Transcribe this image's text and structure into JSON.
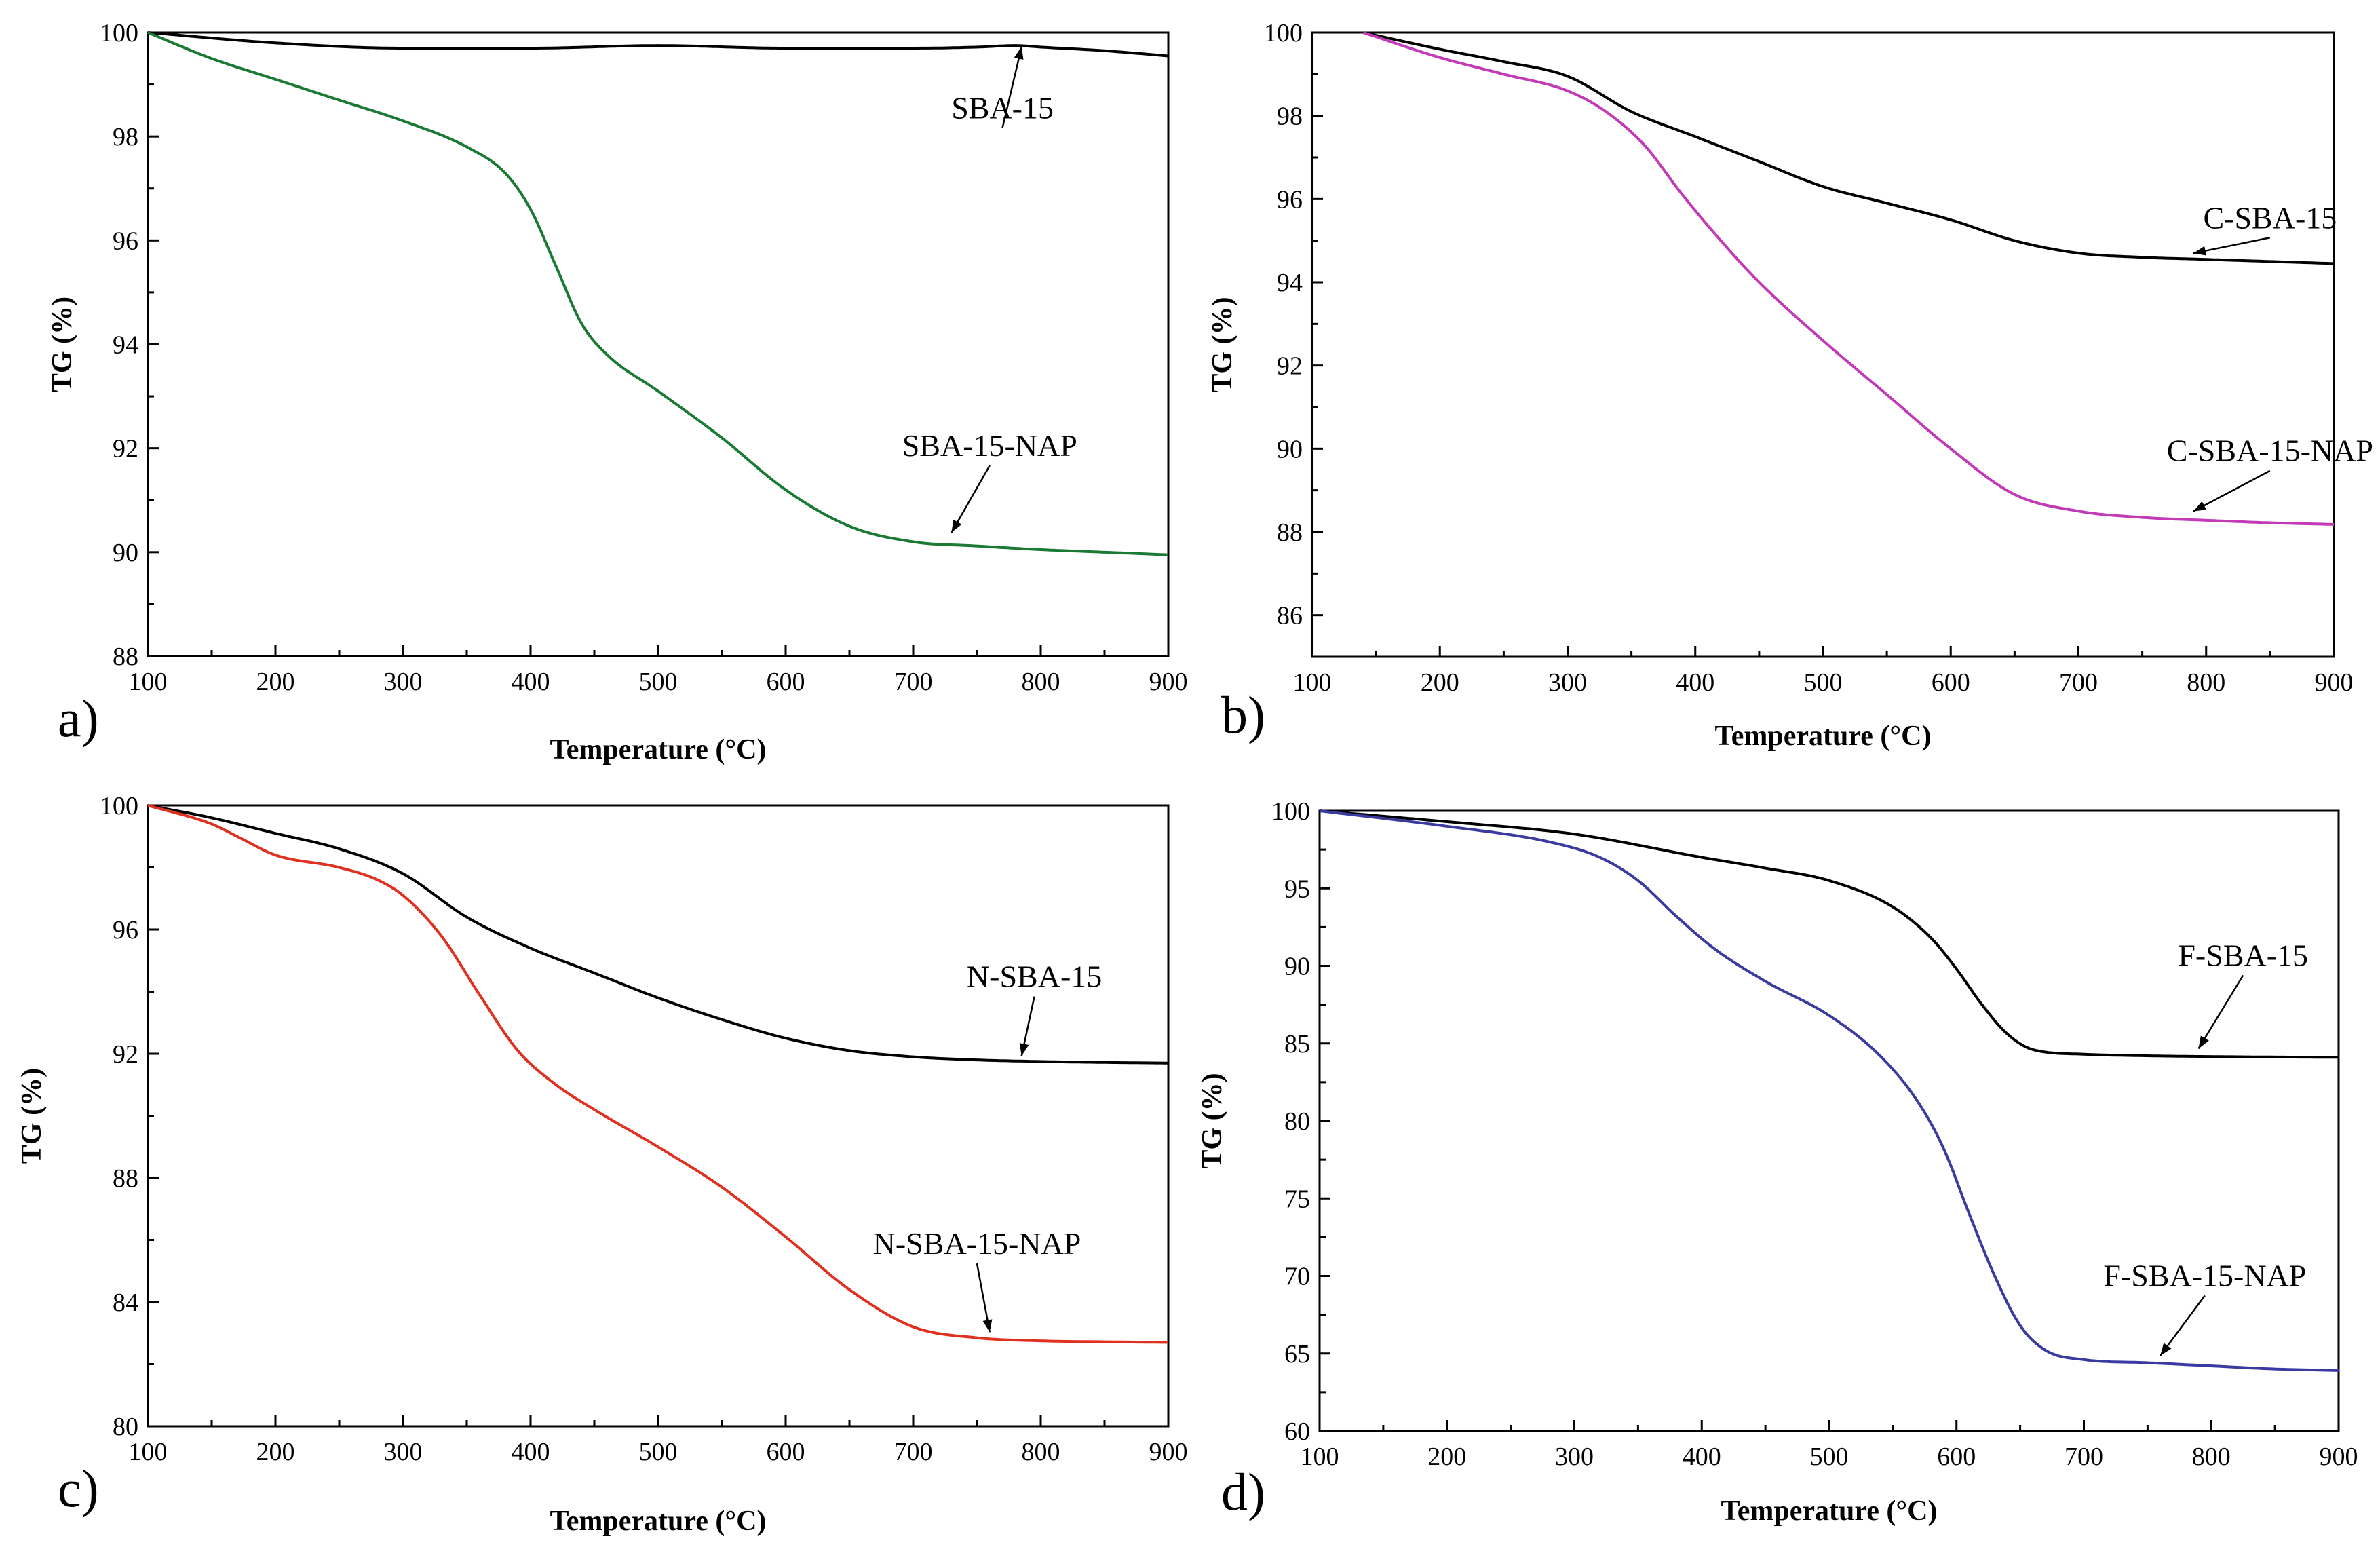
{
  "figure": {
    "chart_data": [
      {
        "id": "a",
        "type": "line",
        "panel_label": "a)",
        "xlabel": "Temperature (°C)",
        "ylabel": "TG (%)",
        "xlim": [
          100,
          900
        ],
        "ylim": [
          88,
          100
        ],
        "xticks": [
          100,
          200,
          300,
          400,
          500,
          600,
          700,
          800,
          900
        ],
        "yticks": [
          88,
          90,
          92,
          94,
          96,
          98,
          100
        ],
        "yminor": 1,
        "series": [
          {
            "name": "SBA-15",
            "color": "#000000",
            "x": [
              100,
              200,
              300,
              400,
              500,
              600,
              700,
              750,
              780,
              800,
              850,
              900
            ],
            "y": [
              100,
              99.8,
              99.7,
              99.7,
              99.75,
              99.7,
              99.7,
              99.72,
              99.75,
              99.72,
              99.65,
              99.55
            ],
            "annotation": {
              "text": "SBA-15",
              "tx": 770,
              "ty": 98.35,
              "ax": 785,
              "ay": 99.65
            }
          },
          {
            "name": "SBA-15-NAP",
            "color": "#1a7a33",
            "x": [
              100,
              150,
              200,
              250,
              300,
              350,
              380,
              400,
              420,
              440,
              460,
              500,
              550,
              600,
              650,
              700,
              750,
              800,
              850,
              900
            ],
            "y": [
              100,
              99.5,
              99.1,
              98.7,
              98.3,
              97.8,
              97.3,
              96.6,
              95.5,
              94.4,
              93.8,
              93.1,
              92.2,
              91.2,
              90.5,
              90.2,
              90.12,
              90.05,
              90.0,
              89.95
            ],
            "annotation": {
              "text": "SBA-15-NAP",
              "tx": 760,
              "ty": 91.85,
              "ax": 730,
              "ay": 90.3
            }
          }
        ]
      },
      {
        "id": "b",
        "type": "line",
        "panel_label": "b)",
        "xlabel": "Temperature (°C)",
        "ylabel": "TG (%)",
        "xlim": [
          100,
          900
        ],
        "ylim": [
          85,
          100
        ],
        "xticks": [
          100,
          200,
          300,
          400,
          500,
          600,
          700,
          800,
          900
        ],
        "yticks": [
          86,
          88,
          90,
          92,
          94,
          96,
          98,
          100
        ],
        "yminor": 1,
        "series": [
          {
            "name": "C-SBA-15",
            "color": "#000000",
            "x": [
              140,
              200,
              250,
              300,
              350,
              400,
              450,
              500,
              550,
              600,
              650,
              700,
              750,
              800,
              850,
              900
            ],
            "y": [
              100,
              99.6,
              99.3,
              98.95,
              98.1,
              97.5,
              96.9,
              96.3,
              95.9,
              95.5,
              95.0,
              94.7,
              94.6,
              94.55,
              94.5,
              94.45
            ],
            "annotation": {
              "text": "C-SBA-15",
              "tx": 850,
              "ty": 95.3,
              "ax": 790,
              "ay": 94.6
            }
          },
          {
            "name": "C-SBA-15-NAP",
            "color": "#c23ab8",
            "x": [
              140,
              200,
              250,
              300,
              330,
              360,
              390,
              420,
              450,
              500,
              550,
              600,
              650,
              700,
              750,
              800,
              850,
              900
            ],
            "y": [
              100,
              99.4,
              99.0,
              98.6,
              98.1,
              97.3,
              96.1,
              95.0,
              94.0,
              92.6,
              91.3,
              90.0,
              88.9,
              88.5,
              88.35,
              88.28,
              88.22,
              88.18
            ],
            "annotation": {
              "text": "C-SBA-15-NAP",
              "tx": 850,
              "ty": 89.7,
              "ax": 790,
              "ay": 88.4
            }
          }
        ]
      },
      {
        "id": "c",
        "type": "line",
        "panel_label": "c)",
        "xlabel": "Temperature (°C)",
        "ylabel": "TG (%)",
        "xlim": [
          100,
          900
        ],
        "ylim": [
          80,
          100
        ],
        "xticks": [
          100,
          200,
          300,
          400,
          500,
          600,
          700,
          800,
          900
        ],
        "yticks": [
          80,
          84,
          88,
          92,
          96,
          100
        ],
        "yminor": 2,
        "series": [
          {
            "name": "N-SBA-15",
            "color": "#000000",
            "x": [
              100,
              150,
              200,
              250,
              300,
              350,
              400,
              450,
              500,
              550,
              600,
              650,
              700,
              750,
              800,
              850,
              900
            ],
            "y": [
              100,
              99.6,
              99.1,
              98.6,
              97.8,
              96.4,
              95.4,
              94.6,
              93.8,
              93.1,
              92.5,
              92.1,
              91.9,
              91.8,
              91.75,
              91.72,
              91.7
            ],
            "annotation": {
              "text": "N-SBA-15",
              "tx": 795,
              "ty": 94.15,
              "ax": 785,
              "ay": 91.8
            }
          },
          {
            "name": "N-SBA-15-NAP",
            "color": "#e03020",
            "x": [
              100,
              150,
              170,
              200,
              250,
              280,
              300,
              330,
              360,
              390,
              420,
              450,
              500,
              550,
              600,
              650,
              700,
              750,
              800,
              850,
              900
            ],
            "y": [
              100,
              99.4,
              99.0,
              98.4,
              98.0,
              97.6,
              97.1,
              95.8,
              93.9,
              92.1,
              91.0,
              90.2,
              89.0,
              87.7,
              86.1,
              84.4,
              83.2,
              82.85,
              82.75,
              82.72,
              82.7
            ],
            "annotation": {
              "text": "N-SBA-15-NAP",
              "tx": 750,
              "ty": 85.55,
              "ax": 760,
              "ay": 82.9
            }
          }
        ]
      },
      {
        "id": "d",
        "type": "line",
        "panel_label": "d)",
        "xlabel": "Temperature (°C)",
        "ylabel": "TG (%)",
        "xlim": [
          100,
          900
        ],
        "ylim": [
          60,
          100
        ],
        "xticks": [
          100,
          200,
          300,
          400,
          500,
          600,
          700,
          800,
          900
        ],
        "yticks": [
          60,
          65,
          70,
          75,
          80,
          85,
          90,
          95,
          100
        ],
        "yminor": 2.5,
        "series": [
          {
            "name": "F-SBA-15",
            "color": "#000000",
            "x": [
              100,
              200,
              300,
              400,
              450,
              500,
              550,
              580,
              600,
              620,
              640,
              660,
              700,
              750,
              800,
              850,
              900
            ],
            "y": [
              100,
              99.3,
              98.5,
              97.0,
              96.3,
              95.5,
              93.8,
              91.8,
              89.8,
              87.5,
              85.6,
              84.6,
              84.3,
              84.2,
              84.15,
              84.12,
              84.1
            ],
            "annotation": {
              "text": "F-SBA-15",
              "tx": 825,
              "ty": 90.0,
              "ax": 790,
              "ay": 84.4
            }
          },
          {
            "name": "F-SBA-15-NAP",
            "color": "#3a3aa0",
            "x": [
              100,
              200,
              280,
              320,
              350,
              380,
              410,
              450,
              500,
              540,
              570,
              590,
              610,
              630,
              650,
              670,
              700,
              750,
              800,
              850,
              900
            ],
            "y": [
              100,
              99.0,
              98.0,
              97.0,
              95.5,
              93.2,
              91.1,
              89.0,
              86.8,
              84.2,
              81.2,
              78.2,
              74.0,
              70.0,
              66.8,
              65.2,
              64.6,
              64.4,
              64.2,
              64.0,
              63.9
            ],
            "annotation": {
              "text": "F-SBA-15-NAP",
              "tx": 795,
              "ty": 69.35,
              "ax": 760,
              "ay": 64.6
            }
          }
        ]
      }
    ]
  }
}
